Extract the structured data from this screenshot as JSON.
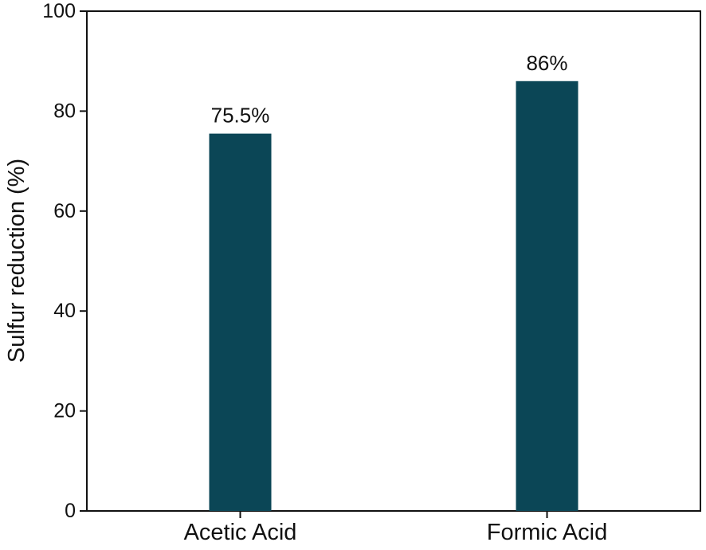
{
  "chart_data": {
    "type": "bar",
    "categories": [
      "Acetic Acid",
      "Formic Acid"
    ],
    "values": [
      75.5,
      86
    ],
    "data_labels": [
      "75.5%",
      "86%"
    ],
    "xlabel": "",
    "ylabel": "Sulfur reduction (%)",
    "ylim": [
      0,
      100
    ],
    "yticks": [
      0,
      20,
      40,
      60,
      80,
      100
    ],
    "grid": false,
    "legend": "none",
    "bar_color": "#0b4656"
  }
}
